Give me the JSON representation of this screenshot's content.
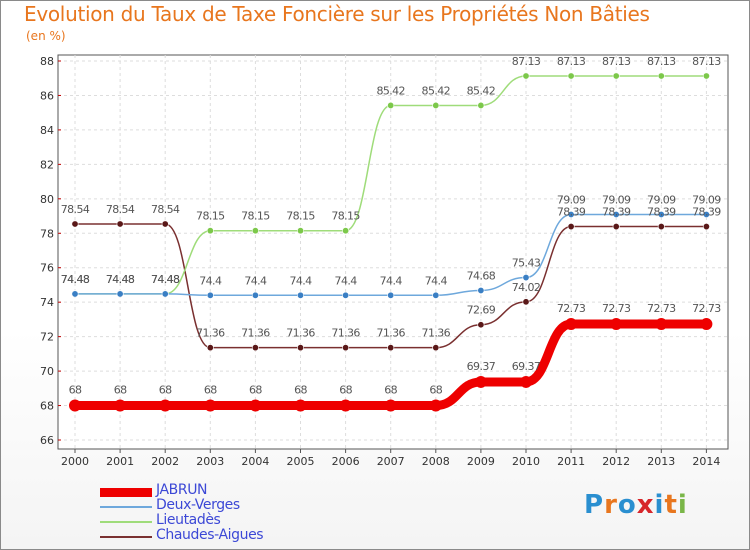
{
  "title": "Evolution du Taux de Taxe Foncière sur les Propriétés Non Bâties",
  "unit_label": "(en %)",
  "logo": [
    "P",
    "r",
    "o",
    "x",
    "i",
    "t",
    "i"
  ],
  "logo_colors": [
    "#2a8fd0",
    "#e8761e",
    "#2a8fd0",
    "#d7262b",
    "#2a8fd0",
    "#e8761e",
    "#7ab648"
  ],
  "chart_data": {
    "type": "line",
    "title": "Evolution du Taux de Taxe Foncière sur les Propriétés Non Bâties",
    "ylabel": "(en %)",
    "xlabel": "",
    "categories": [
      "2000",
      "2001",
      "2002",
      "2003",
      "2004",
      "2005",
      "2006",
      "2007",
      "2008",
      "2009",
      "2010",
      "2011",
      "2012",
      "2013",
      "2014"
    ],
    "ylim": [
      66,
      88
    ],
    "yticks": [
      "66",
      "68",
      "70",
      "72",
      "74",
      "76",
      "78",
      "80",
      "82",
      "84",
      "86",
      "88"
    ],
    "grid": true,
    "series": [
      {
        "name": "JABRUN",
        "color": "#ee0000",
        "marker": "#ee0000",
        "values": [
          68,
          68,
          68,
          68,
          68,
          68,
          68,
          68,
          68,
          69.37,
          69.37,
          72.73,
          72.73,
          72.73,
          72.73
        ],
        "labels": [
          "68",
          "68",
          "68",
          "68",
          "68",
          "68",
          "68",
          "68",
          "68",
          "69.37",
          "69.37",
          "72.73",
          "72.73",
          "72.73",
          "72.73"
        ]
      },
      {
        "name": "Deux-Verges",
        "color": "#6ea8dc",
        "marker": "#3a7fc4",
        "values": [
          74.48,
          74.48,
          74.48,
          74.4,
          74.4,
          74.4,
          74.4,
          74.4,
          74.4,
          74.68,
          75.43,
          79.09,
          79.09,
          79.09,
          79.09
        ],
        "labels": [
          "74.48",
          "74.48",
          "74.48",
          "74.4",
          "74.4",
          "74.4",
          "74.4",
          "74.4",
          "74.4",
          "74.68",
          "75.43",
          "79.09",
          "79.09",
          "79.09",
          "79.09"
        ]
      },
      {
        "name": "Lieutadès",
        "color": "#9fdc7a",
        "marker": "#7cc84a",
        "values": [
          74.48,
          74.48,
          74.48,
          78.15,
          78.15,
          78.15,
          78.15,
          85.42,
          85.42,
          85.42,
          87.13,
          87.13,
          87.13,
          87.13,
          87.13
        ],
        "labels": [
          "74.48",
          "74.48",
          "74.48",
          "78.15",
          "78.15",
          "78.15",
          "78.15",
          "85.42",
          "85.42",
          "85.42",
          "87.13",
          "87.13",
          "87.13",
          "87.13",
          "87.13"
        ]
      },
      {
        "name": "Chaudes-Aigues",
        "color": "#7a3030",
        "marker": "#5a1818",
        "values": [
          78.54,
          78.54,
          78.54,
          71.36,
          71.36,
          71.36,
          71.36,
          71.36,
          71.36,
          72.69,
          74.02,
          78.39,
          78.39,
          78.39,
          78.39
        ],
        "labels": [
          "78.54",
          "78.54",
          "78.54",
          "71.36",
          "71.36",
          "71.36",
          "71.36",
          "71.36",
          "71.36",
          "72.69",
          "74.02",
          "78.39",
          "78.39",
          "78.39",
          "78.39"
        ]
      }
    ],
    "legend_position": "bottom-left"
  }
}
